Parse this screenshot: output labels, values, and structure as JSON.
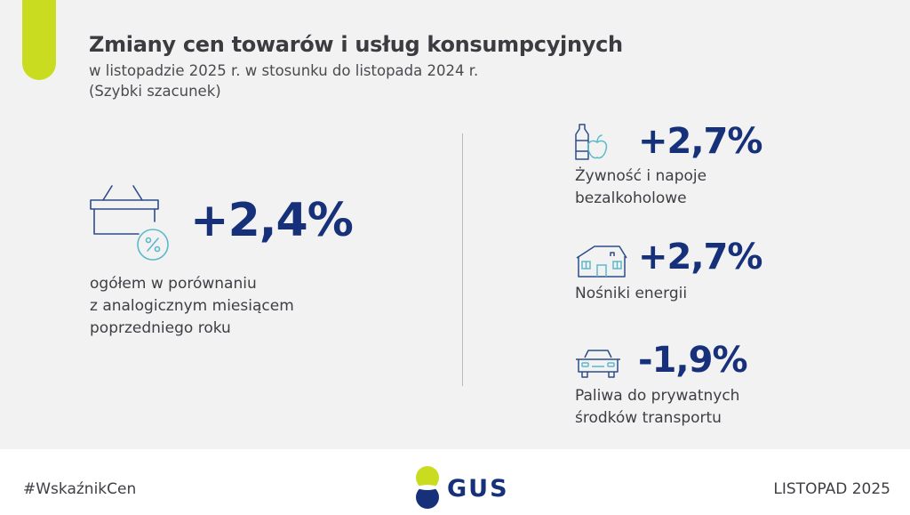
{
  "header": {
    "title": "Zmiany cen towarów i usług konsumpcyjnych",
    "subtitle_line1": "w listopadzie 2025 r. w stosunku do listopada 2024 r.",
    "subtitle_line2": "(Szybki szacunek)"
  },
  "main": {
    "value": "+2,4%",
    "desc_line1": "ogółem w porównaniu",
    "desc_line2": "z analogicznym miesiącem",
    "desc_line3": "poprzedniego roku",
    "icon": "basket-percent-icon"
  },
  "categories": [
    {
      "value": "+2,7%",
      "label_line1": "Żywność i napoje",
      "label_line2": "bezalkoholowe",
      "icon": "food-drink-icon"
    },
    {
      "value": "+2,7%",
      "label_line1": "Nośniki energii",
      "label_line2": "",
      "icon": "house-icon"
    },
    {
      "value": "-1,9%",
      "label_line1": "Paliwa do prywatnych",
      "label_line2": "środków transportu",
      "icon": "car-icon"
    }
  ],
  "footer": {
    "hashtag": "#WskaźnikCen",
    "logo_text": "GUS",
    "period": "LISTOPAD 2025"
  },
  "colors": {
    "accent": "#c9dc1f",
    "value_blue": "#16307a",
    "icon_teal": "#5bb9c9",
    "icon_blue": "#2c4c8a"
  }
}
